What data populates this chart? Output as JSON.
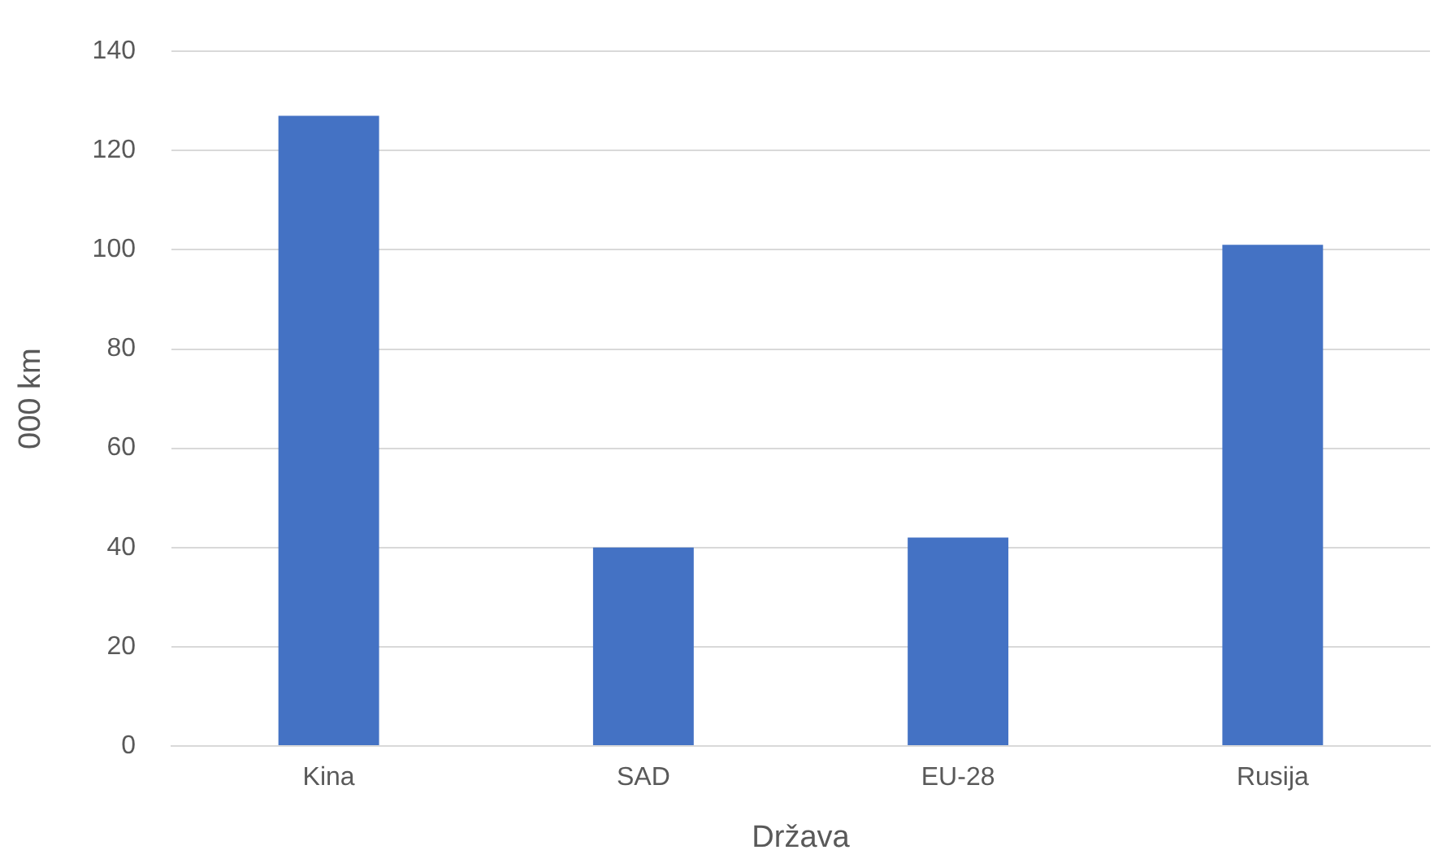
{
  "chart_data": {
    "type": "bar",
    "xlabel": "Država",
    "ylabel": "000 km",
    "categories": [
      "Kina",
      "SAD",
      "EU-28",
      "Rusija"
    ],
    "values": [
      127,
      40,
      42,
      101
    ],
    "color": "#4472c4",
    "ylim": [
      0,
      140
    ],
    "yticks": [
      0,
      20,
      40,
      60,
      80,
      100,
      120,
      140
    ],
    "grid": "y",
    "legend": false
  }
}
